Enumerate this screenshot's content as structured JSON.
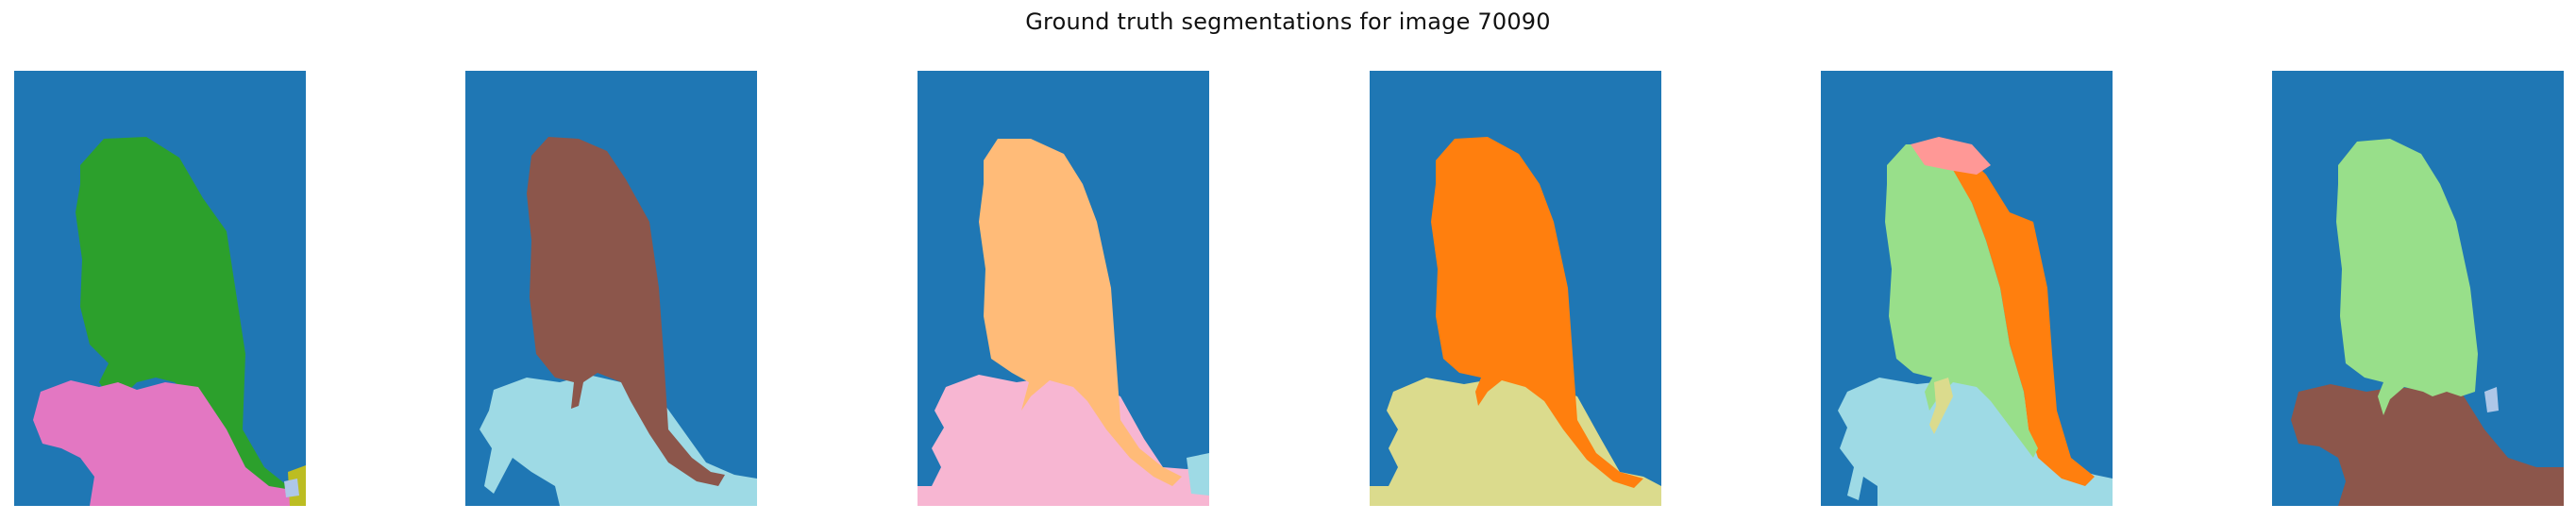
{
  "figure": {
    "title": "Ground truth segmentations for image 70090"
  },
  "panels": [
    {
      "id": "seg-1",
      "colors": {
        "background": "#1f77b4",
        "bird": "#2ca02c",
        "perch": "#e377c2",
        "accent": "#bcbd22",
        "small": "#aec7e8"
      }
    },
    {
      "id": "seg-2",
      "colors": {
        "background": "#1f77b4",
        "bird": "#8c564b",
        "perch": "#9edae5"
      }
    },
    {
      "id": "seg-3",
      "colors": {
        "background": "#1f77b4",
        "bird": "#ffbb78",
        "perch": "#f7b6d2",
        "small": "#9edae5"
      }
    },
    {
      "id": "seg-4",
      "colors": {
        "background": "#1f77b4",
        "bird": "#ff7f0e",
        "perch": "#dbdb8d"
      }
    },
    {
      "id": "seg-5",
      "colors": {
        "background": "#1f77b4",
        "bird-front": "#98df8a",
        "bird-back": "#ff7f0e",
        "head": "#ff9896",
        "perch": "#9edae5",
        "legs": "#dbdb8d"
      }
    },
    {
      "id": "seg-6",
      "colors": {
        "background": "#1f77b4",
        "bird": "#98df8a",
        "perch": "#8c564b",
        "small": "#aec7e8"
      }
    }
  ]
}
